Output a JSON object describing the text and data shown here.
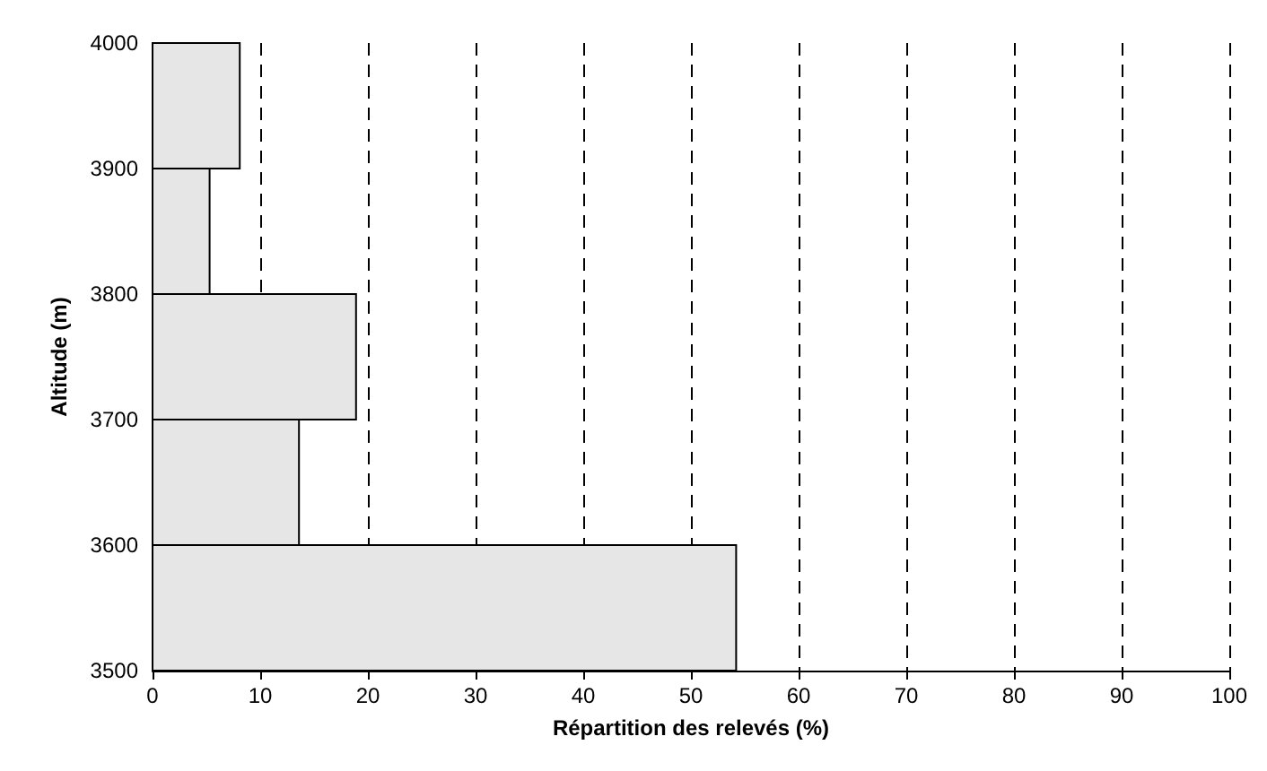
{
  "chart_data": {
    "type": "histogram",
    "orientation": "horizontal",
    "xlabel": "Répartition des relevés (%)",
    "ylabel": "Altitude (m)",
    "bins": [
      3500,
      3600,
      3700,
      3800,
      3900,
      4000
    ],
    "values": [
      54.2,
      13.6,
      18.9,
      5.3,
      8.1
    ],
    "color": "#e6e6e6",
    "xlim": [
      0,
      100
    ],
    "xticks": [
      0,
      10,
      20,
      30,
      40,
      50,
      60,
      70,
      80,
      90,
      100
    ],
    "ylim": [
      3500,
      4000
    ],
    "yticks": [
      3500,
      3600,
      3700,
      3800,
      3900,
      4000
    ],
    "grid": "x"
  }
}
